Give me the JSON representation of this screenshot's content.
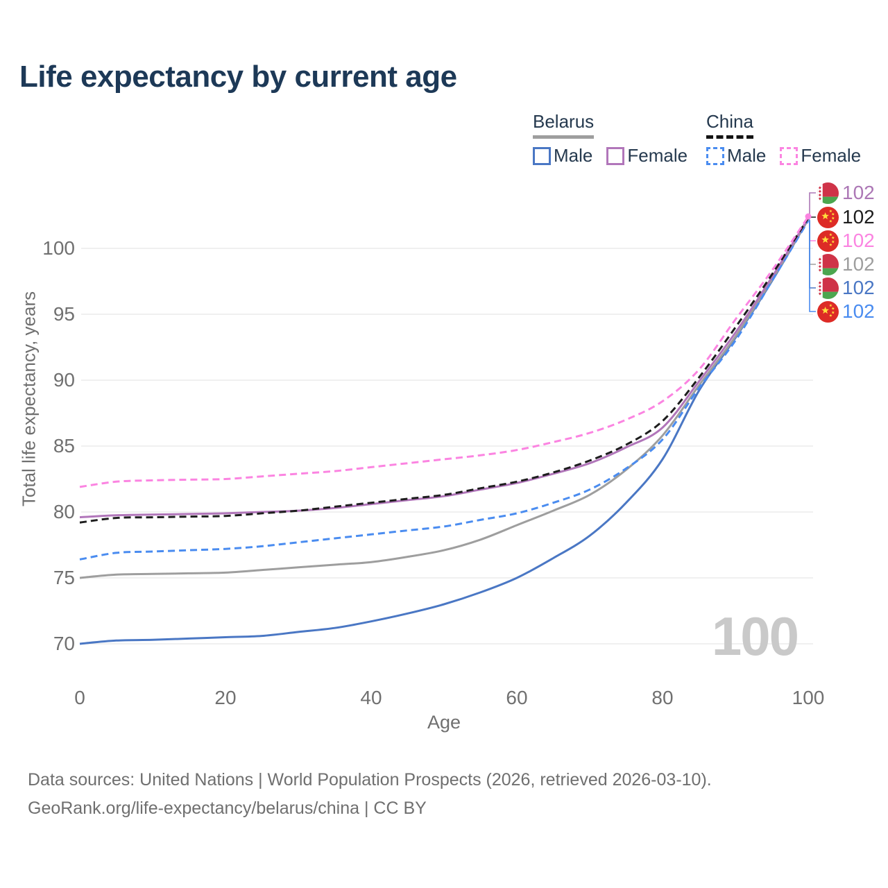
{
  "title": "Life expectancy by current age",
  "legend": {
    "groups": [
      {
        "id": "belarus",
        "label": "Belarus",
        "line_style": "solid",
        "header_color": "#9e9e9e",
        "items": [
          {
            "label": "Male",
            "color": "#4a77c4",
            "style": "solid"
          },
          {
            "label": "Female",
            "color": "#b176ba",
            "style": "solid"
          }
        ]
      },
      {
        "id": "china",
        "label": "China",
        "line_style": "dashed",
        "header_color": "#141414",
        "items": [
          {
            "label": "Male",
            "color": "#4a8cf0",
            "style": "dashed"
          },
          {
            "label": "Female",
            "color": "#fb84e1",
            "style": "dashed"
          }
        ]
      }
    ]
  },
  "chart_data": {
    "type": "line",
    "title": "Life expectancy by current age",
    "xlabel": "Age",
    "ylabel": "Total life expectancy, years",
    "x_ticks": [
      0,
      20,
      40,
      60,
      80,
      100
    ],
    "y_ticks": [
      70,
      75,
      80,
      85,
      90,
      95,
      100
    ],
    "xlim": [
      0,
      100
    ],
    "ylim": [
      70,
      102.5
    ],
    "grid": "horizontal",
    "x": [
      0,
      5,
      10,
      15,
      20,
      25,
      30,
      35,
      40,
      45,
      50,
      55,
      60,
      65,
      70,
      75,
      80,
      85,
      90,
      95,
      100
    ],
    "series": [
      {
        "name": "Belarus Male",
        "country": "Belarus",
        "sex": "male",
        "color": "#4a77c4",
        "style": "solid",
        "values": [
          70.0,
          70.25,
          70.3,
          70.4,
          70.5,
          70.6,
          70.9,
          71.2,
          71.7,
          72.3,
          73.0,
          73.9,
          75.0,
          76.5,
          78.2,
          80.7,
          84.0,
          89.2,
          93.2,
          97.5,
          102.2
        ]
      },
      {
        "name": "Belarus Total",
        "country": "Belarus",
        "sex": "both",
        "color": "#9e9e9e",
        "style": "solid",
        "values": [
          75.0,
          75.25,
          75.3,
          75.35,
          75.4,
          75.6,
          75.8,
          76.0,
          76.2,
          76.6,
          77.1,
          77.9,
          79.0,
          80.1,
          81.3,
          83.2,
          85.8,
          89.6,
          93.3,
          97.6,
          102.2
        ]
      },
      {
        "name": "China Male",
        "country": "China",
        "sex": "male",
        "color": "#4a8cf0",
        "style": "dashed",
        "values": [
          76.4,
          76.9,
          77.0,
          77.1,
          77.2,
          77.4,
          77.7,
          78.0,
          78.3,
          78.6,
          78.9,
          79.4,
          79.9,
          80.7,
          81.7,
          83.3,
          85.5,
          89.4,
          93.0,
          97.5,
          102.1
        ]
      },
      {
        "name": "Belarus Female",
        "country": "Belarus",
        "sex": "female",
        "color": "#b176ba",
        "style": "solid",
        "values": [
          79.6,
          79.75,
          79.8,
          79.85,
          79.9,
          80.0,
          80.1,
          80.3,
          80.6,
          80.9,
          81.2,
          81.7,
          82.2,
          82.9,
          83.7,
          84.9,
          86.4,
          89.9,
          93.6,
          97.8,
          102.3
        ]
      },
      {
        "name": "China Total",
        "country": "China",
        "sex": "both",
        "color": "#1d1d1d",
        "style": "dashed",
        "values": [
          79.2,
          79.55,
          79.6,
          79.65,
          79.7,
          79.9,
          80.1,
          80.4,
          80.7,
          81.0,
          81.3,
          81.8,
          82.3,
          83.0,
          83.9,
          85.1,
          86.9,
          90.2,
          94.0,
          98.0,
          102.3
        ]
      },
      {
        "name": "China Female",
        "country": "China",
        "sex": "female",
        "color": "#fb84e1",
        "style": "dashed",
        "values": [
          81.9,
          82.3,
          82.4,
          82.45,
          82.5,
          82.7,
          82.9,
          83.1,
          83.4,
          83.7,
          84.0,
          84.3,
          84.7,
          85.3,
          86.0,
          87.0,
          88.4,
          90.8,
          94.6,
          98.3,
          102.4
        ]
      }
    ],
    "end_labels": [
      {
        "series": "Belarus Female",
        "flag": "belarus",
        "value": "102",
        "color": "#ac77b5"
      },
      {
        "series": "China Total",
        "flag": "china",
        "value": "102",
        "color": "#1d1d1d"
      },
      {
        "series": "China Female",
        "flag": "china",
        "value": "102",
        "color": "#fb84e1"
      },
      {
        "series": "Belarus Total",
        "flag": "belarus",
        "value": "102",
        "color": "#9e9e9e"
      },
      {
        "series": "Belarus Male",
        "flag": "belarus",
        "value": "102",
        "color": "#4a77c4"
      },
      {
        "series": "China Male",
        "flag": "china",
        "value": "102",
        "color": "#4a8cf0"
      }
    ],
    "annotations": {
      "age_watermark": "100"
    }
  },
  "watermark": "100",
  "footer": {
    "line1": "Data sources: United Nations | World Population Prospects (2026, retrieved 2026-03-10).",
    "line2": "GeoRank.org/life-expectancy/belarus/china | CC BY"
  }
}
